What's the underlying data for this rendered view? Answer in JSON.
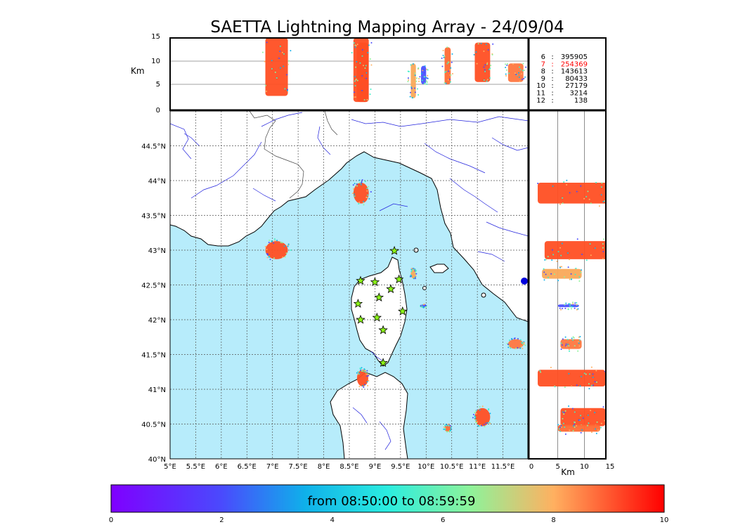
{
  "title": "SAETTA Lightning Mapping Array - 24/09/04",
  "colors": {
    "sea": "#b7ecfb",
    "land": "#ffffff",
    "coast": "#000000",
    "rivers": "#2222dd",
    "borders": "#444444",
    "grid": "#555555",
    "stations": "#8cf518"
  },
  "top_panel": {
    "ylabel": "Km",
    "yticks": [
      "0",
      "5",
      "10",
      "15"
    ],
    "ylim": [
      0,
      15
    ]
  },
  "right_panel": {
    "xlabel": "Km",
    "xticks": [
      "0",
      "5",
      "10",
      "15"
    ],
    "xlim": [
      0,
      15
    ]
  },
  "map": {
    "lon_range": [
      5,
      12
    ],
    "lat_range": [
      40,
      45
    ],
    "lon_ticks": [
      "5°E",
      "5.5°E",
      "6°E",
      "6.5°E",
      "7°E",
      "7.5°E",
      "8°E",
      "8.5°E",
      "9°E",
      "9.5°E",
      "10°E",
      "10.5°E",
      "11°E",
      "11.5°E"
    ],
    "lat_ticks": [
      "40°N",
      "40.5°N",
      "41°N",
      "41.5°N",
      "42°N",
      "42.5°N",
      "43°N",
      "43.5°N",
      "44°N",
      "44.5°N"
    ]
  },
  "stats": [
    {
      "label": "6",
      "count": "395905",
      "color": "#000000"
    },
    {
      "label": "7",
      "count": "254369",
      "color": "#ff0000"
    },
    {
      "label": "8",
      "count": "143613",
      "color": "#000000"
    },
    {
      "label": "9",
      "count": "80433",
      "color": "#000000"
    },
    {
      "label": "10",
      "count": "27179",
      "color": "#000000"
    },
    {
      "label": "11",
      "count": "3214",
      "color": "#000000"
    },
    {
      "label": "12",
      "count": "138",
      "color": "#000000"
    }
  ],
  "colorbar": {
    "label": "from 08:50:00 to 08:59:59",
    "ticks": [
      "0",
      "2",
      "4",
      "6",
      "8",
      "10"
    ],
    "range": [
      0,
      10
    ],
    "colormap": "rainbow"
  },
  "chart_data": {
    "type": "scatter",
    "description_colormap": "rainbow",
    "stations": [
      {
        "lon": 9.38,
        "lat": 42.99
      },
      {
        "lon": 8.72,
        "lat": 42.56
      },
      {
        "lon": 9.0,
        "lat": 42.54
      },
      {
        "lon": 9.47,
        "lat": 42.58
      },
      {
        "lon": 9.31,
        "lat": 42.44
      },
      {
        "lon": 9.08,
        "lat": 42.32
      },
      {
        "lon": 8.67,
        "lat": 42.23
      },
      {
        "lon": 9.54,
        "lat": 42.12
      },
      {
        "lon": 8.72,
        "lat": 42.0
      },
      {
        "lon": 9.04,
        "lat": 42.03
      },
      {
        "lon": 9.16,
        "lat": 41.85
      },
      {
        "lon": 9.16,
        "lat": 41.38
      }
    ],
    "clusters": [
      {
        "lon": 7.08,
        "lat": 43.0,
        "rx": 0.22,
        "ry": 0.13,
        "zmin": 2.5,
        "zmax": 15,
        "color": "#ff4f23"
      },
      {
        "lon": 8.73,
        "lat": 43.82,
        "rx": 0.15,
        "ry": 0.15,
        "zmin": 1.2,
        "zmax": 15,
        "color": "#ff4f23"
      },
      {
        "lon": 8.76,
        "lat": 41.16,
        "rx": 0.11,
        "ry": 0.12,
        "zmin": 1.2,
        "zmax": 14,
        "color": "#ff4f23"
      },
      {
        "lon": 11.1,
        "lat": 40.6,
        "rx": 0.15,
        "ry": 0.13,
        "zmin": 5.5,
        "zmax": 14,
        "color": "#ff4f23"
      },
      {
        "lon": 10.42,
        "lat": 40.44,
        "rx": 0.06,
        "ry": 0.05,
        "zmin": 5.0,
        "zmax": 13,
        "color": "#ff6a34"
      },
      {
        "lon": 11.75,
        "lat": 41.65,
        "rx": 0.15,
        "ry": 0.07,
        "zmin": 5.5,
        "zmax": 9.5,
        "color": "#ff7740"
      },
      {
        "lon": 9.75,
        "lat": 42.66,
        "rx": 0.05,
        "ry": 0.07,
        "zmin": 2.0,
        "zmax": 9.5,
        "color": "#f9a95a"
      },
      {
        "lon": 9.95,
        "lat": 42.2,
        "rx": 0.05,
        "ry": 0.02,
        "zmin": 5.0,
        "zmax": 9.0,
        "color": "#4b52ff"
      }
    ]
  }
}
